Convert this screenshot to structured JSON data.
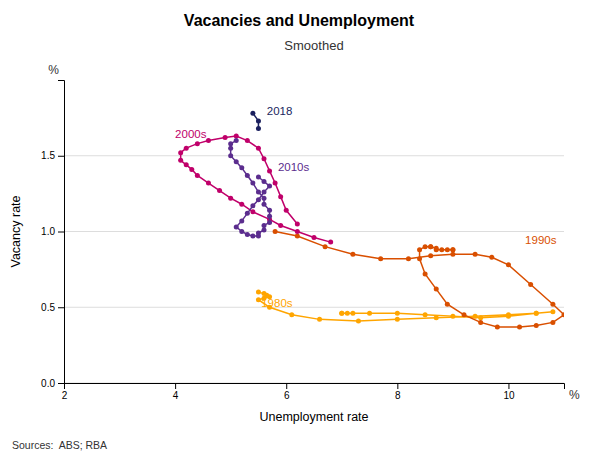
{
  "chart_data": {
    "type": "line",
    "title": "Vacancies and Unemployment",
    "subtitle": "Smoothed",
    "xlabel": "Unemployment rate",
    "ylabel": "Vacancy rate",
    "source": "Sources:  ABS; RBA",
    "xlim": [
      2,
      11
    ],
    "ylim": [
      0.0,
      2.0
    ],
    "xticks": [
      2,
      4,
      6,
      8,
      10
    ],
    "yticks": [
      {
        "value": 0.0,
        "label": "0.0"
      },
      0.5,
      {
        "value": 1.0,
        "label": "1.0"
      },
      1.5
    ],
    "grid": "y",
    "marker": "circle",
    "series": [
      {
        "color": "#FFA500",
        "x": [
          5.5,
          5.6,
          5.65,
          5.7,
          5.6,
          5.5,
          5.7,
          6.1,
          6.6,
          7.3,
          8.0,
          8.7,
          9.4,
          10.0,
          10.5,
          10.8,
          10.5,
          10.0,
          9.5,
          9.0,
          8.5,
          8.0,
          7.5,
          7.2,
          7.0,
          7.0,
          7.1
        ],
        "values": [
          0.6,
          0.59,
          0.58,
          0.57,
          0.56,
          0.55,
          0.5,
          0.45,
          0.42,
          0.41,
          0.42,
          0.43,
          0.44,
          0.45,
          0.46,
          0.47,
          0.46,
          0.44,
          0.43,
          0.44,
          0.45,
          0.46,
          0.46,
          0.46,
          0.46,
          0.46,
          0.46
        ]
      },
      {
        "color": "#D94F00",
        "x": [
          5.8,
          6.2,
          6.7,
          7.2,
          7.7,
          8.2,
          8.6,
          9.0,
          9.4,
          9.7,
          10.0,
          10.4,
          10.8,
          11.0,
          10.8,
          10.5,
          10.2,
          9.8,
          9.5,
          9.2,
          8.9,
          8.7,
          8.5,
          8.4,
          8.4,
          8.5,
          8.6,
          8.6,
          8.7,
          8.7,
          8.8,
          8.9,
          9.0,
          9.0
        ],
        "values": [
          1.0,
          0.97,
          0.9,
          0.85,
          0.82,
          0.82,
          0.84,
          0.85,
          0.85,
          0.83,
          0.78,
          0.65,
          0.52,
          0.45,
          0.4,
          0.38,
          0.37,
          0.37,
          0.4,
          0.45,
          0.52,
          0.62,
          0.72,
          0.82,
          0.88,
          0.9,
          0.9,
          0.9,
          0.89,
          0.88,
          0.88,
          0.88,
          0.88,
          0.88
        ]
      },
      {
        "color": "#C0006A",
        "x": [
          6.8,
          6.5,
          6.2,
          5.9,
          5.7,
          5.4,
          5.2,
          5.0,
          4.8,
          4.6,
          4.4,
          4.3,
          4.2,
          4.1,
          4.1,
          4.2,
          4.4,
          4.6,
          4.9,
          5.1,
          5.3,
          5.5,
          5.6,
          5.7,
          5.8,
          5.9,
          6.0,
          6.2
        ],
        "values": [
          0.93,
          0.96,
          1.0,
          1.04,
          1.08,
          1.13,
          1.18,
          1.22,
          1.27,
          1.32,
          1.37,
          1.41,
          1.44,
          1.47,
          1.52,
          1.55,
          1.58,
          1.6,
          1.62,
          1.63,
          1.6,
          1.55,
          1.48,
          1.4,
          1.32,
          1.23,
          1.14,
          1.05
        ]
      },
      {
        "color": "#5B2D8E",
        "x": [
          5.1,
          5.0,
          5.0,
          5.0,
          5.1,
          5.2,
          5.3,
          5.4,
          5.5,
          5.6,
          5.6,
          5.7,
          5.7,
          5.7,
          5.6,
          5.6,
          5.5,
          5.5,
          5.4,
          5.3,
          5.2,
          5.1,
          5.2,
          5.3,
          5.4,
          5.5,
          5.6,
          5.7,
          5.6,
          5.5
        ],
        "values": [
          1.6,
          1.58,
          1.55,
          1.5,
          1.46,
          1.42,
          1.37,
          1.32,
          1.26,
          1.22,
          1.18,
          1.14,
          1.1,
          1.06,
          1.04,
          1.01,
          0.99,
          0.97,
          0.97,
          0.98,
          1.0,
          1.03,
          1.07,
          1.12,
          1.17,
          1.21,
          1.26,
          1.3,
          1.33,
          1.36
        ]
      },
      {
        "color": "#1A1F5E",
        "x": [
          5.5,
          5.5,
          5.4
        ],
        "values": [
          1.68,
          1.73,
          1.78
        ]
      }
    ],
    "annotations": [
      {
        "text": "2000s",
        "x": 4.0,
        "y": 1.64,
        "color": "#C0006A"
      },
      {
        "text": "2018",
        "x": 5.65,
        "y": 1.79,
        "color": "#1A1F5E"
      },
      {
        "text": "2010s",
        "x": 5.85,
        "y": 1.42,
        "color": "#5B2D8E"
      },
      {
        "text": "1990s",
        "x": 10.3,
        "y": 0.94,
        "color": "#D94F00"
      },
      {
        "text": "1980s",
        "x": 5.55,
        "y": 0.52,
        "color": "#FFA500"
      },
      {
        "text": "%",
        "axis": "x"
      },
      {
        "text": "%",
        "axis": "y"
      }
    ]
  }
}
